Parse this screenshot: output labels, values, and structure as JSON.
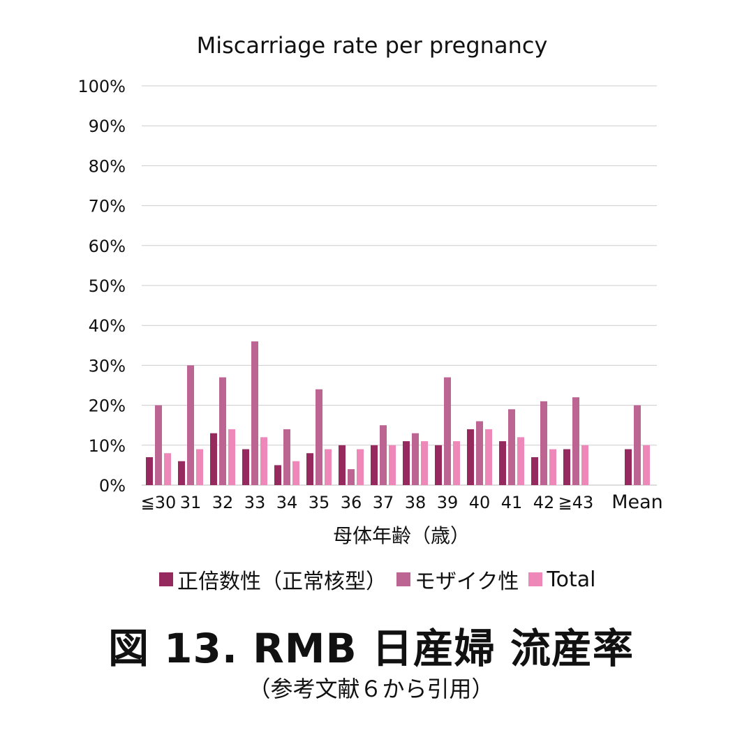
{
  "chart_data": {
    "type": "bar",
    "title": "Miscarriage rate per pregnancy",
    "xlabel": "母体年齢（歳）",
    "ylabel": "",
    "categories": [
      "≦30",
      "31",
      "32",
      "33",
      "34",
      "35",
      "36",
      "37",
      "38",
      "39",
      "40",
      "41",
      "42",
      "≧43",
      "Mean"
    ],
    "ylim": [
      0,
      100
    ],
    "yticks": [
      "0%",
      "10%",
      "20%",
      "30%",
      "40%",
      "50%",
      "60%",
      "70%",
      "80%",
      "90%",
      "100%"
    ],
    "grid": true,
    "legend_position": "bottom",
    "series": [
      {
        "name": "正倍数性（正常核型）",
        "color": "#962a5e",
        "values": [
          7,
          6,
          13,
          9,
          5,
          8,
          10,
          10,
          11,
          10,
          14,
          11,
          7,
          9,
          9
        ]
      },
      {
        "name": "モザイク性",
        "color": "#bd6592",
        "values": [
          20,
          30,
          27,
          36,
          14,
          24,
          4,
          15,
          13,
          27,
          16,
          19,
          21,
          22,
          20
        ]
      },
      {
        "name": "Total",
        "color": "#ee88b8",
        "values": [
          8,
          9,
          14,
          12,
          6,
          9,
          9,
          10,
          11,
          11,
          14,
          12,
          9,
          10,
          10
        ]
      }
    ]
  },
  "caption": {
    "title": "図 13.  RMB  日産婦  流産率",
    "note": "（参考文献６から引用）"
  }
}
